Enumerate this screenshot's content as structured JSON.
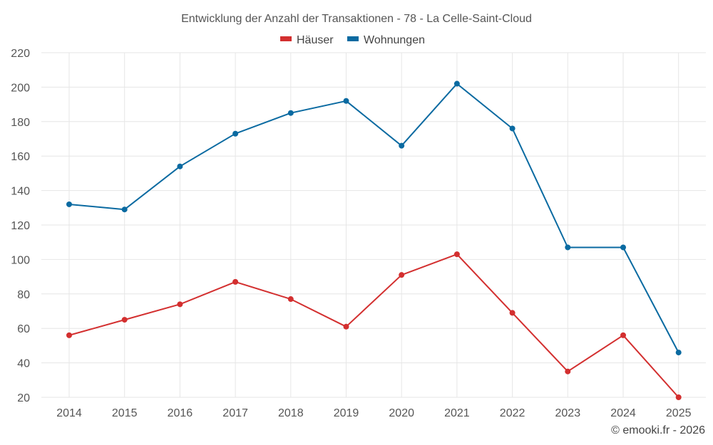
{
  "chart_data": {
    "type": "line",
    "title": "Entwicklung der Anzahl der Transaktionen - 78 - La Celle-Saint-Cloud",
    "categories": [
      "2014",
      "2015",
      "2016",
      "2017",
      "2018",
      "2019",
      "2020",
      "2021",
      "2022",
      "2023",
      "2024",
      "2025"
    ],
    "series": [
      {
        "name": "Häuser",
        "color": "#d32f2f",
        "values": [
          56,
          65,
          74,
          87,
          77,
          61,
          91,
          103,
          69,
          35,
          56,
          20
        ]
      },
      {
        "name": "Wohnungen",
        "color": "#0a6aa1",
        "values": [
          132,
          129,
          154,
          173,
          185,
          192,
          166,
          202,
          176,
          107,
          107,
          46
        ]
      }
    ],
    "yticks": [
      "20",
      "40",
      "60",
      "80",
      "100",
      "120",
      "140",
      "160",
      "180",
      "200",
      "220"
    ],
    "ylim": [
      20,
      220
    ],
    "xlabel": "",
    "ylabel": "",
    "grid": true,
    "legend_position": "top-center"
  },
  "credit": "© emooki.fr - 2026"
}
